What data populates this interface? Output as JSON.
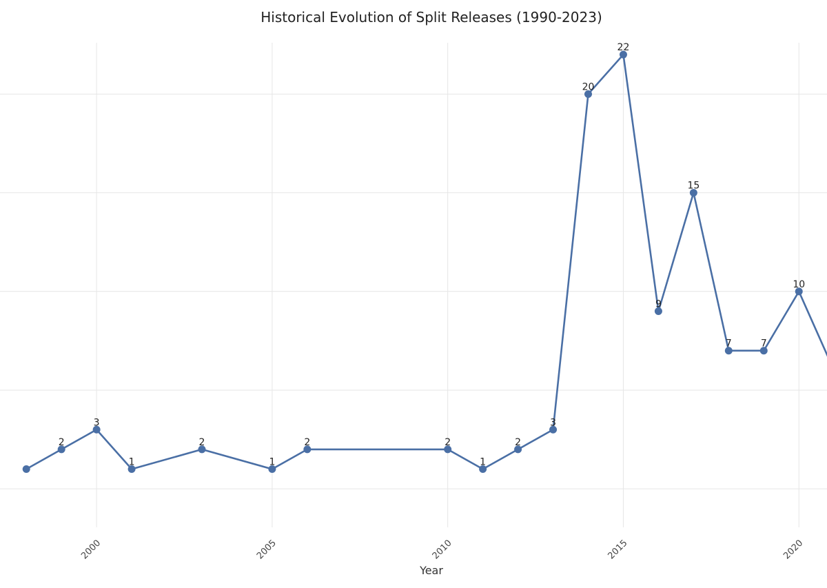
{
  "chart_data": {
    "type": "line",
    "title": "Historical Evolution of Split Releases (1990-2023)",
    "xlabel": "Year",
    "ylabel": "",
    "x_ticks": [
      2000,
      2005,
      2010,
      2015,
      2020
    ],
    "x_range": [
      1997.25,
      2020.8
    ],
    "y_range": [
      -1.95,
      22.6
    ],
    "y_gridlines": [
      0,
      5,
      10,
      15,
      20
    ],
    "grid": true,
    "legend": "none",
    "color": "#4a6fa5",
    "points": [
      {
        "x": 1998,
        "y": 1,
        "label": ""
      },
      {
        "x": 1999,
        "y": 2,
        "label": "2"
      },
      {
        "x": 2000,
        "y": 3,
        "label": "3"
      },
      {
        "x": 2001,
        "y": 1,
        "label": "1"
      },
      {
        "x": 2003,
        "y": 2,
        "label": "2"
      },
      {
        "x": 2005,
        "y": 1,
        "label": "1"
      },
      {
        "x": 2006,
        "y": 2,
        "label": "2"
      },
      {
        "x": 2010,
        "y": 2,
        "label": "2"
      },
      {
        "x": 2011,
        "y": 1,
        "label": "1"
      },
      {
        "x": 2012,
        "y": 2,
        "label": "2"
      },
      {
        "x": 2013,
        "y": 3,
        "label": "3"
      },
      {
        "x": 2014,
        "y": 20,
        "label": "20"
      },
      {
        "x": 2015,
        "y": 22,
        "label": "22"
      },
      {
        "x": 2016,
        "y": 9,
        "label": "9"
      },
      {
        "x": 2017,
        "y": 15,
        "label": "15"
      },
      {
        "x": 2018,
        "y": 7,
        "label": "7"
      },
      {
        "x": 2019,
        "y": 7,
        "label": "7"
      },
      {
        "x": 2020,
        "y": 10,
        "label": "10"
      },
      {
        "x": 2021,
        "y": 6,
        "label": ""
      }
    ]
  }
}
